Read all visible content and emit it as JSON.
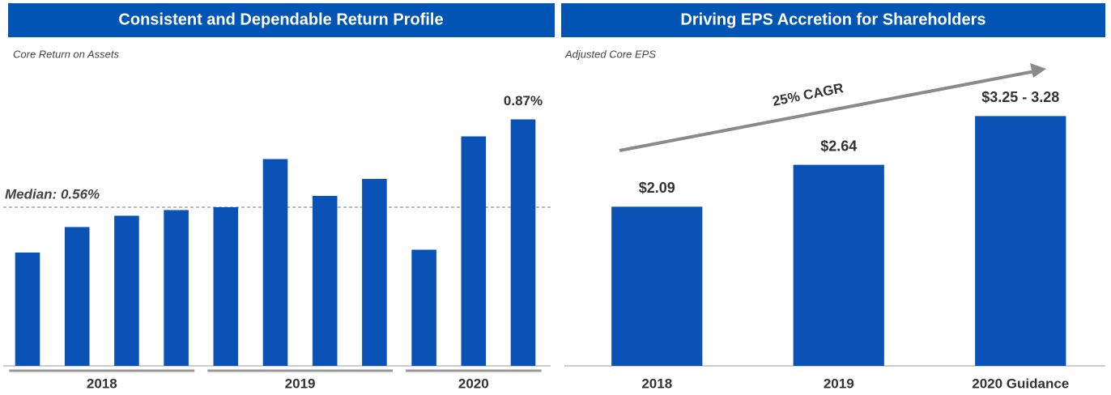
{
  "chart_data": [
    {
      "type": "bar",
      "title": "Consistent and Dependable Return Profile",
      "subtitle": "Core Return on Assets",
      "categories": [
        null,
        null,
        null,
        null,
        null,
        null,
        null,
        null,
        null,
        null,
        null
      ],
      "values": [
        0.4,
        0.49,
        0.53,
        0.55,
        0.56,
        0.73,
        0.6,
        0.66,
        0.41,
        0.81,
        0.87
      ],
      "value_labels": [
        null,
        null,
        null,
        null,
        null,
        null,
        null,
        null,
        null,
        null,
        "0.87%"
      ],
      "groups": [
        {
          "name": "2018",
          "size": 4
        },
        {
          "name": "2019",
          "size": 4
        },
        {
          "name": "2020",
          "size": 3
        }
      ],
      "median": {
        "value": 0.56,
        "label": "Median: 0.56%"
      },
      "color": "#0a52b5",
      "ylim": [
        0,
        1
      ]
    },
    {
      "type": "bar",
      "title": "Driving EPS Accretion for Shareholders",
      "subtitle": "Adjusted Core EPS",
      "categories": [
        "2018",
        "2019",
        "2020 Guidance"
      ],
      "values": [
        2.09,
        2.64,
        3.28
      ],
      "value_labels": [
        "$2.09",
        "$2.64",
        "$3.25 - 3.28"
      ],
      "annotation": "25% CAGR",
      "color": "#0a52b5",
      "ylim": [
        0,
        3.72
      ]
    }
  ]
}
